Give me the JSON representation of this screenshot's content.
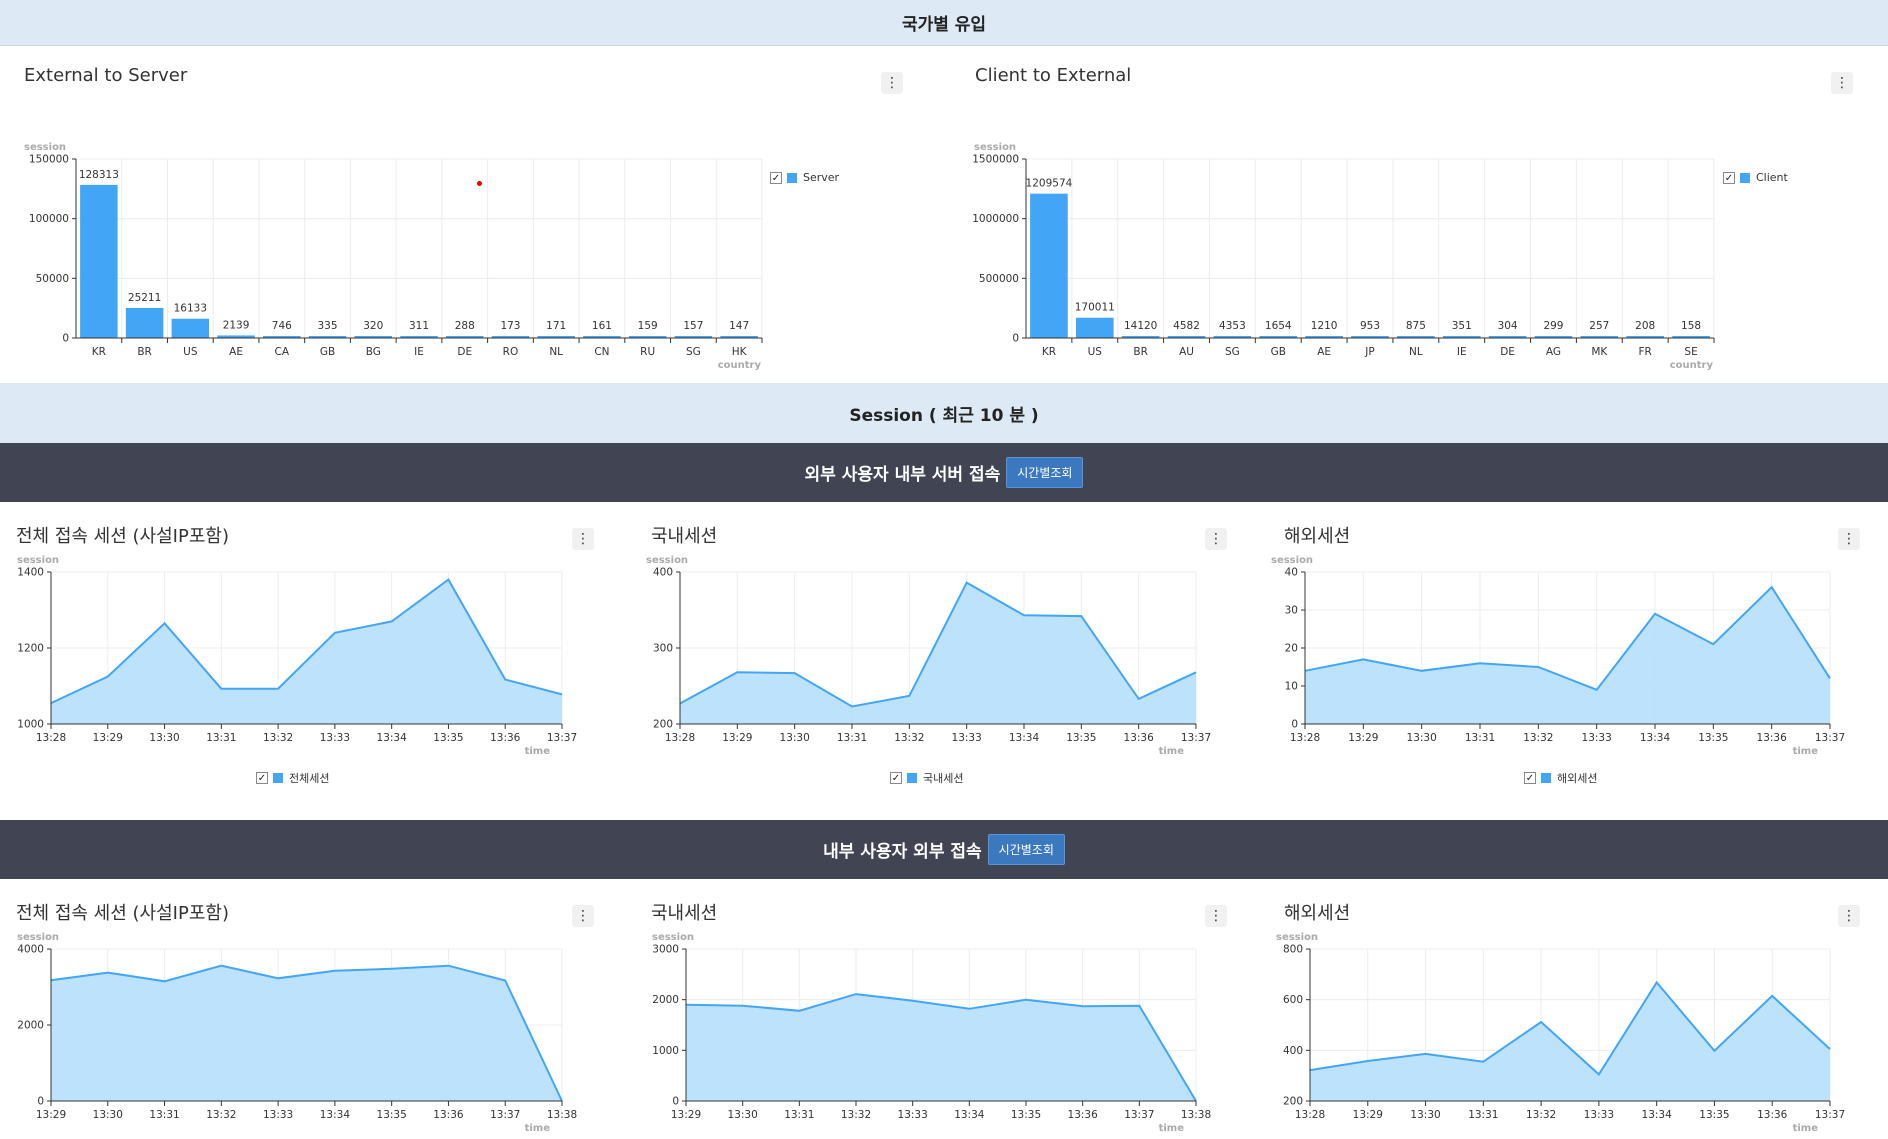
{
  "colors": {
    "series": "#42a5f5",
    "area": "#b9e0fb",
    "band_light": "#dde9f5",
    "band_dark": "#414553",
    "button": "#3c78bf"
  },
  "sections": {
    "country_title": "국가별 유입",
    "session_title": "Session ( 최근 10 분 )",
    "external_users": {
      "title": "외부 사용자 내부 서버 접속",
      "button": "시간별조회"
    },
    "internal_users": {
      "title": "내부 사용자 외부 접속",
      "button": "시간별조회"
    }
  },
  "charts": [
    {
      "type": "bar",
      "title": "External to Server",
      "ylabel": "session",
      "xlabel": "country",
      "ylim": [
        0,
        150000
      ],
      "yticks": [
        0,
        50000,
        100000,
        150000
      ],
      "legend": "Server",
      "legend_pos": "right",
      "categories": [
        "KR",
        "BR",
        "US",
        "AE",
        "CA",
        "GB",
        "BG",
        "IE",
        "DE",
        "RO",
        "NL",
        "CN",
        "RU",
        "SG",
        "HK"
      ],
      "values": [
        128313,
        25211,
        16133,
        2139,
        746,
        335,
        320,
        311,
        288,
        173,
        171,
        161,
        159,
        157,
        147
      ]
    },
    {
      "type": "bar",
      "title": "Client to External",
      "ylabel": "session",
      "xlabel": "country",
      "ylim": [
        0,
        1500000
      ],
      "yticks": [
        0,
        500000,
        1000000,
        1500000
      ],
      "legend": "Client",
      "legend_pos": "right",
      "categories": [
        "KR",
        "US",
        "BR",
        "AU",
        "SG",
        "GB",
        "AE",
        "JP",
        "NL",
        "IE",
        "DE",
        "AG",
        "MK",
        "FR",
        "SE"
      ],
      "values": [
        1209574,
        170011,
        14120,
        4582,
        4353,
        1654,
        1210,
        953,
        875,
        351,
        304,
        299,
        257,
        208,
        158
      ]
    },
    {
      "type": "area",
      "title": "전체 접속 세션 (사설IP포함)",
      "ylabel": "session",
      "xlabel": "time",
      "ylim": [
        1000,
        1400
      ],
      "yticks": [
        1000,
        1200,
        1400
      ],
      "legend": "전체세션",
      "legend_pos": "bottom",
      "x": [
        "13:28",
        "13:29",
        "13:30",
        "13:31",
        "13:32",
        "13:33",
        "13:34",
        "13:35",
        "13:36",
        "13:37"
      ],
      "values": [
        1055,
        1125,
        1265,
        1093,
        1093,
        1240,
        1270,
        1380,
        1117,
        1078
      ]
    },
    {
      "type": "area",
      "title": "국내세션",
      "ylabel": "session",
      "xlabel": "time",
      "ylim": [
        200,
        400
      ],
      "yticks": [
        200,
        300,
        400
      ],
      "legend": "국내세션",
      "legend_pos": "bottom",
      "x": [
        "13:28",
        "13:29",
        "13:30",
        "13:31",
        "13:32",
        "13:33",
        "13:34",
        "13:35",
        "13:36",
        "13:37"
      ],
      "values": [
        227,
        268,
        267,
        223,
        237,
        386,
        343,
        342,
        233,
        268
      ]
    },
    {
      "type": "area",
      "title": "해외세션",
      "ylabel": "session",
      "xlabel": "time",
      "ylim": [
        0,
        40
      ],
      "yticks": [
        0,
        10,
        20,
        30,
        40
      ],
      "legend": "해외세션",
      "legend_pos": "bottom",
      "x": [
        "13:28",
        "13:29",
        "13:30",
        "13:31",
        "13:32",
        "13:33",
        "13:34",
        "13:35",
        "13:36",
        "13:37"
      ],
      "values": [
        14,
        17,
        14,
        16,
        15,
        9,
        29,
        21,
        36,
        12
      ]
    },
    {
      "type": "area",
      "title": "전체 접속 세션 (사설IP포함)",
      "ylabel": "session",
      "xlabel": "time",
      "ylim": [
        0,
        4000
      ],
      "yticks": [
        0,
        2000,
        4000
      ],
      "legend": "",
      "x": [
        "13:29",
        "13:30",
        "13:31",
        "13:32",
        "13:33",
        "13:34",
        "13:35",
        "13:36",
        "13:37",
        "13:38"
      ],
      "values": [
        3180,
        3380,
        3150,
        3560,
        3230,
        3430,
        3480,
        3560,
        3170,
        0
      ]
    },
    {
      "type": "area",
      "title": "국내세션",
      "ylabel": "session",
      "xlabel": "time",
      "ylim": [
        0,
        3000
      ],
      "yticks": [
        0,
        1000,
        2000,
        3000
      ],
      "legend": "",
      "x": [
        "13:29",
        "13:30",
        "13:31",
        "13:32",
        "13:33",
        "13:34",
        "13:35",
        "13:36",
        "13:37",
        "13:38"
      ],
      "values": [
        1900,
        1880,
        1780,
        2110,
        1980,
        1820,
        2000,
        1870,
        1880,
        0
      ]
    },
    {
      "type": "area",
      "title": "해외세션",
      "ylabel": "session",
      "xlabel": "time",
      "ylim": [
        200,
        800
      ],
      "yticks": [
        200,
        400,
        600,
        800
      ],
      "legend": "",
      "x": [
        "13:28",
        "13:29",
        "13:30",
        "13:31",
        "13:32",
        "13:33",
        "13:34",
        "13:35",
        "13:36",
        "13:37"
      ],
      "values": [
        322,
        358,
        386,
        355,
        512,
        305,
        668,
        398,
        615,
        405
      ]
    }
  ]
}
